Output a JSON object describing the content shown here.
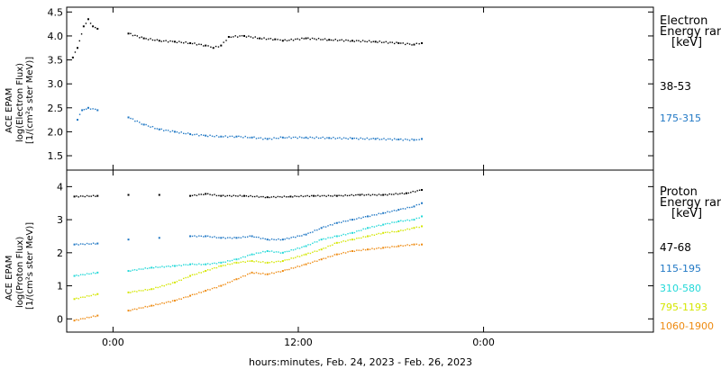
{
  "chart_data": [
    {
      "type": "scatter",
      "panel": "electron",
      "ylabel_lines": [
        "ACE EPAM",
        "log(Electron Flux)",
        "[1/(cm²s ster MeV)]"
      ],
      "ylim": [
        1.2,
        4.6
      ],
      "yticks": [
        "1.5",
        "2.0",
        "2.5",
        "3.0",
        "3.5",
        "4.0",
        "4.5"
      ],
      "ytick_values": [
        1.5,
        2.0,
        2.5,
        3.0,
        3.5,
        4.0,
        4.5
      ],
      "xlim_hours": [
        -3,
        35
      ],
      "legend": {
        "title_line1": "Electron",
        "title_line2": "Energy ranges",
        "units": "[keV]",
        "entries": [
          {
            "label": "38-53",
            "color": "#000000"
          },
          {
            "label": "175-315",
            "color": "#1f77c4"
          }
        ]
      },
      "series": [
        {
          "name": "38-53",
          "color": "#000000",
          "points": [
            [
              -2.6,
              3.55
            ],
            [
              -2.3,
              3.75
            ],
            [
              -1.9,
              4.2
            ],
            [
              -1.6,
              4.35
            ],
            [
              -1.3,
              4.2
            ],
            [
              -1.0,
              4.15
            ],
            [
              1.0,
              4.05
            ],
            [
              2.0,
              3.95
            ],
            [
              3.0,
              3.9
            ],
            [
              4.0,
              3.88
            ],
            [
              5.0,
              3.85
            ],
            [
              6.0,
              3.8
            ],
            [
              6.5,
              3.75
            ],
            [
              7.0,
              3.8
            ],
            [
              7.5,
              3.98
            ],
            [
              8.5,
              4.0
            ],
            [
              9.5,
              3.95
            ],
            [
              10.5,
              3.93
            ],
            [
              11.0,
              3.9
            ],
            [
              12.5,
              3.95
            ],
            [
              14.0,
              3.92
            ],
            [
              15.5,
              3.9
            ],
            [
              17.0,
              3.88
            ],
            [
              18.5,
              3.85
            ],
            [
              19.5,
              3.82
            ],
            [
              20.0,
              3.85
            ]
          ]
        },
        {
          "name": "175-315",
          "color": "#1f77c4",
          "points": [
            [
              -2.3,
              2.25
            ],
            [
              -2.0,
              2.45
            ],
            [
              -1.6,
              2.5
            ],
            [
              -1.0,
              2.45
            ],
            [
              1.0,
              2.3
            ],
            [
              2.0,
              2.15
            ],
            [
              3.0,
              2.05
            ],
            [
              4.0,
              2.0
            ],
            [
              5.0,
              1.95
            ],
            [
              6.0,
              1.92
            ],
            [
              7.0,
              1.9
            ],
            [
              8.0,
              1.9
            ],
            [
              9.0,
              1.88
            ],
            [
              10.0,
              1.85
            ],
            [
              11.0,
              1.88
            ],
            [
              12.5,
              1.88
            ],
            [
              14.0,
              1.87
            ],
            [
              15.5,
              1.86
            ],
            [
              17.0,
              1.85
            ],
            [
              18.5,
              1.84
            ],
            [
              19.5,
              1.83
            ],
            [
              20.0,
              1.85
            ]
          ]
        }
      ]
    },
    {
      "type": "scatter",
      "panel": "proton",
      "ylabel_lines": [
        "ACE EPAM",
        "log(Proton Flux)",
        "[1/(cm²s ster MeV)]"
      ],
      "ylim": [
        -0.4,
        4.5
      ],
      "yticks": [
        "0",
        "1",
        "2",
        "3",
        "4"
      ],
      "ytick_values": [
        0,
        1,
        2,
        3,
        4
      ],
      "xlim_hours": [
        -3,
        35
      ],
      "legend": {
        "title_line1": "Proton",
        "title_line2": "Energy ranges",
        "units": "[keV]",
        "entries": [
          {
            "label": "47-68",
            "color": "#000000"
          },
          {
            "label": "115-195",
            "color": "#1f77c4"
          },
          {
            "label": "310-580",
            "color": "#21d8d8"
          },
          {
            "label": "795-1193",
            "color": "#d4e600"
          },
          {
            "label": "1060-1900",
            "color": "#ee8a10"
          }
        ]
      },
      "series": [
        {
          "name": "47-68",
          "color": "#000000",
          "points": [
            [
              -2.5,
              3.7
            ],
            [
              -1.0,
              3.72
            ],
            [
              1.0,
              3.75
            ],
            [
              3.0,
              3.75
            ],
            [
              5.0,
              3.72
            ],
            [
              6.0,
              3.78
            ],
            [
              7.0,
              3.72
            ],
            [
              8.5,
              3.72
            ],
            [
              10.0,
              3.68
            ],
            [
              11.5,
              3.7
            ],
            [
              13.0,
              3.72
            ],
            [
              14.5,
              3.72
            ],
            [
              16.0,
              3.75
            ],
            [
              17.5,
              3.75
            ],
            [
              19.0,
              3.8
            ],
            [
              20.0,
              3.9
            ]
          ]
        },
        {
          "name": "115-195",
          "color": "#1f77c4",
          "points": [
            [
              -2.5,
              2.25
            ],
            [
              -1.0,
              2.28
            ],
            [
              1.0,
              2.4
            ],
            [
              3.0,
              2.45
            ],
            [
              5.0,
              2.5
            ],
            [
              6.0,
              2.5
            ],
            [
              7.0,
              2.45
            ],
            [
              8.0,
              2.45
            ],
            [
              9.0,
              2.5
            ],
            [
              10.0,
              2.4
            ],
            [
              11.0,
              2.4
            ],
            [
              12.5,
              2.55
            ],
            [
              13.5,
              2.75
            ],
            [
              14.5,
              2.9
            ],
            [
              15.5,
              3.0
            ],
            [
              16.5,
              3.1
            ],
            [
              17.5,
              3.2
            ],
            [
              18.5,
              3.3
            ],
            [
              19.5,
              3.4
            ],
            [
              20.0,
              3.5
            ]
          ]
        },
        {
          "name": "310-580",
          "color": "#21d8d8",
          "points": [
            [
              -2.5,
              1.3
            ],
            [
              -1.0,
              1.4
            ],
            [
              1.0,
              1.45
            ],
            [
              2.5,
              1.55
            ],
            [
              4.0,
              1.6
            ],
            [
              5.0,
              1.65
            ],
            [
              6.0,
              1.65
            ],
            [
              7.0,
              1.7
            ],
            [
              8.0,
              1.8
            ],
            [
              9.0,
              1.95
            ],
            [
              10.0,
              2.05
            ],
            [
              11.0,
              2.0
            ],
            [
              12.5,
              2.2
            ],
            [
              13.5,
              2.4
            ],
            [
              14.5,
              2.5
            ],
            [
              15.5,
              2.6
            ],
            [
              16.5,
              2.75
            ],
            [
              17.5,
              2.85
            ],
            [
              18.5,
              2.95
            ],
            [
              19.5,
              3.0
            ],
            [
              20.0,
              3.1
            ]
          ]
        },
        {
          "name": "795-1193",
          "color": "#d4e600",
          "points": [
            [
              -2.5,
              0.6
            ],
            [
              -1.0,
              0.75
            ],
            [
              1.0,
              0.8
            ],
            [
              2.5,
              0.9
            ],
            [
              4.0,
              1.1
            ],
            [
              5.0,
              1.3
            ],
            [
              6.0,
              1.45
            ],
            [
              7.0,
              1.6
            ],
            [
              8.0,
              1.7
            ],
            [
              9.0,
              1.75
            ],
            [
              10.0,
              1.7
            ],
            [
              11.0,
              1.75
            ],
            [
              12.5,
              1.95
            ],
            [
              13.5,
              2.1
            ],
            [
              14.5,
              2.3
            ],
            [
              15.5,
              2.4
            ],
            [
              16.5,
              2.5
            ],
            [
              17.5,
              2.6
            ],
            [
              18.5,
              2.65
            ],
            [
              19.5,
              2.75
            ],
            [
              20.0,
              2.8
            ]
          ]
        },
        {
          "name": "1060-1900",
          "color": "#ee8a10",
          "points": [
            [
              -2.5,
              -0.05
            ],
            [
              -1.0,
              0.1
            ],
            [
              1.0,
              0.25
            ],
            [
              2.5,
              0.4
            ],
            [
              4.0,
              0.55
            ],
            [
              5.0,
              0.7
            ],
            [
              6.0,
              0.85
            ],
            [
              7.0,
              1.0
            ],
            [
              8.0,
              1.2
            ],
            [
              9.0,
              1.4
            ],
            [
              10.0,
              1.35
            ],
            [
              11.0,
              1.45
            ],
            [
              12.5,
              1.65
            ],
            [
              13.5,
              1.8
            ],
            [
              14.5,
              1.95
            ],
            [
              15.5,
              2.05
            ],
            [
              16.5,
              2.1
            ],
            [
              17.5,
              2.15
            ],
            [
              18.5,
              2.2
            ],
            [
              19.5,
              2.25
            ],
            [
              20.0,
              2.25
            ]
          ]
        }
      ]
    }
  ],
  "x_axis": {
    "ticks": [
      {
        "label": "0:00",
        "hour": 0
      },
      {
        "label": "12:00",
        "hour": 12
      },
      {
        "label": "0:00",
        "hour": 24
      }
    ],
    "footer": "hours:minutes, Feb. 24, 2023 - Feb. 26, 2023"
  }
}
